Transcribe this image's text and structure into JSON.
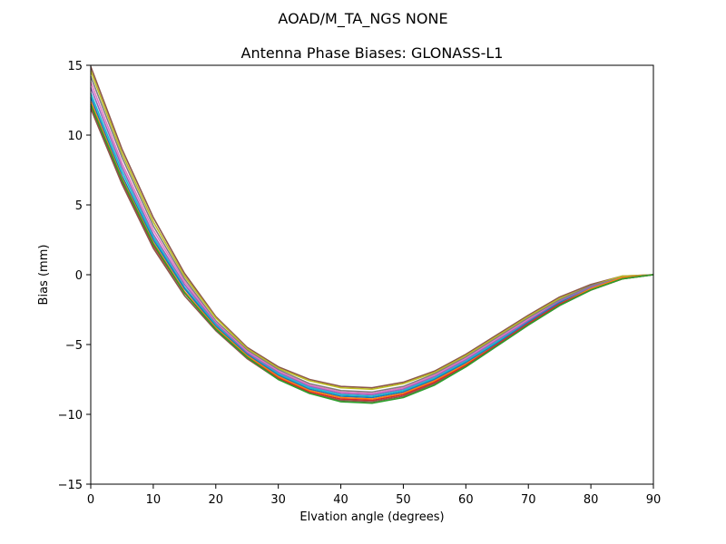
{
  "suptitle": "AOAD/M_TA_NGS   NONE",
  "chart_data": {
    "type": "line",
    "title": "Antenna Phase Biases: GLONASS-L1",
    "xlabel": "Elvation angle (degrees)",
    "ylabel": "Bias (mm)",
    "xlim": [
      0,
      90
    ],
    "ylim": [
      -15,
      15
    ],
    "xticks": [
      0,
      10,
      20,
      30,
      40,
      50,
      60,
      70,
      80,
      90
    ],
    "yticks": [
      -15,
      -10,
      -5,
      0,
      5,
      10,
      15
    ],
    "xtick_labels": [
      "0",
      "10",
      "20",
      "30",
      "40",
      "50",
      "60",
      "70",
      "80",
      "90"
    ],
    "ytick_labels": [
      "−15",
      "−10",
      "−5",
      "0",
      "5",
      "10",
      "15"
    ],
    "grid": false,
    "legend": "none",
    "x": [
      0,
      5,
      10,
      15,
      20,
      25,
      30,
      35,
      40,
      45,
      50,
      55,
      60,
      65,
      70,
      75,
      80,
      85,
      90
    ],
    "series": [
      {
        "color": "#8c564b",
        "values": [
          14.9,
          9.0,
          4.1,
          0.1,
          -3.0,
          -5.2,
          -6.6,
          -7.5,
          -8.0,
          -8.1,
          -7.7,
          -6.9,
          -5.7,
          -4.3,
          -2.9,
          -1.6,
          -0.7,
          -0.1,
          0.0
        ]
      },
      {
        "color": "#bcbd22",
        "values": [
          14.6,
          8.7,
          3.8,
          -0.1,
          -3.1,
          -5.3,
          -6.7,
          -7.6,
          -8.1,
          -8.2,
          -7.8,
          -7.0,
          -5.8,
          -4.4,
          -3.0,
          -1.7,
          -0.8,
          -0.1,
          0.0
        ]
      },
      {
        "color": "#7f7f7f",
        "values": [
          14.2,
          8.4,
          3.5,
          -0.3,
          -3.3,
          -5.4,
          -6.8,
          -7.8,
          -8.3,
          -8.4,
          -8.0,
          -7.1,
          -5.9,
          -4.5,
          -3.1,
          -1.8,
          -0.8,
          -0.2,
          0.0
        ]
      },
      {
        "color": "#e377c2",
        "values": [
          13.8,
          8.0,
          3.2,
          -0.5,
          -3.4,
          -5.5,
          -6.9,
          -7.9,
          -8.4,
          -8.5,
          -8.1,
          -7.2,
          -6.0,
          -4.6,
          -3.2,
          -1.9,
          -0.9,
          -0.2,
          0.0
        ]
      },
      {
        "color": "#9467bd",
        "values": [
          13.4,
          7.7,
          2.9,
          -0.7,
          -3.5,
          -5.6,
          -7.0,
          -8.0,
          -8.5,
          -8.6,
          -8.2,
          -7.3,
          -6.1,
          -4.7,
          -3.3,
          -1.9,
          -0.9,
          -0.2,
          0.0
        ]
      },
      {
        "color": "#17becf",
        "values": [
          13.0,
          7.4,
          2.7,
          -0.9,
          -3.6,
          -5.7,
          -7.1,
          -8.1,
          -8.6,
          -8.7,
          -8.3,
          -7.4,
          -6.2,
          -4.8,
          -3.4,
          -2.0,
          -1.0,
          -0.2,
          0.0
        ]
      },
      {
        "color": "#1f77b4",
        "values": [
          12.7,
          7.1,
          2.5,
          -1.0,
          -3.7,
          -5.7,
          -7.2,
          -8.2,
          -8.7,
          -8.8,
          -8.4,
          -7.5,
          -6.3,
          -4.9,
          -3.4,
          -2.0,
          -1.0,
          -0.2,
          0.0
        ]
      },
      {
        "color": "#ff7f0e",
        "values": [
          12.4,
          6.9,
          2.3,
          -1.2,
          -3.8,
          -5.8,
          -7.3,
          -8.3,
          -8.8,
          -8.9,
          -8.5,
          -7.6,
          -6.4,
          -5.0,
          -3.5,
          -2.1,
          -1.0,
          -0.2,
          0.0
        ]
      },
      {
        "color": "#d62728",
        "values": [
          12.1,
          6.7,
          2.1,
          -1.3,
          -3.9,
          -5.9,
          -7.4,
          -8.4,
          -8.9,
          -9.0,
          -8.6,
          -7.7,
          -6.5,
          -5.0,
          -3.5,
          -2.1,
          -1.1,
          -0.3,
          0.0
        ]
      },
      {
        "color": "#8c564b",
        "values": [
          11.9,
          6.5,
          1.9,
          -1.5,
          -4.0,
          -6.0,
          -7.5,
          -8.5,
          -9.0,
          -9.1,
          -8.7,
          -7.8,
          -6.6,
          -5.1,
          -3.6,
          -2.2,
          -1.1,
          -0.3,
          0.0
        ]
      },
      {
        "color": "#2ca02c",
        "values": [
          12.2,
          6.8,
          2.2,
          -1.3,
          -3.9,
          -5.9,
          -7.5,
          -8.5,
          -9.1,
          -9.2,
          -8.8,
          -7.9,
          -6.6,
          -5.1,
          -3.6,
          -2.2,
          -1.1,
          -0.3,
          0.0
        ]
      }
    ]
  }
}
